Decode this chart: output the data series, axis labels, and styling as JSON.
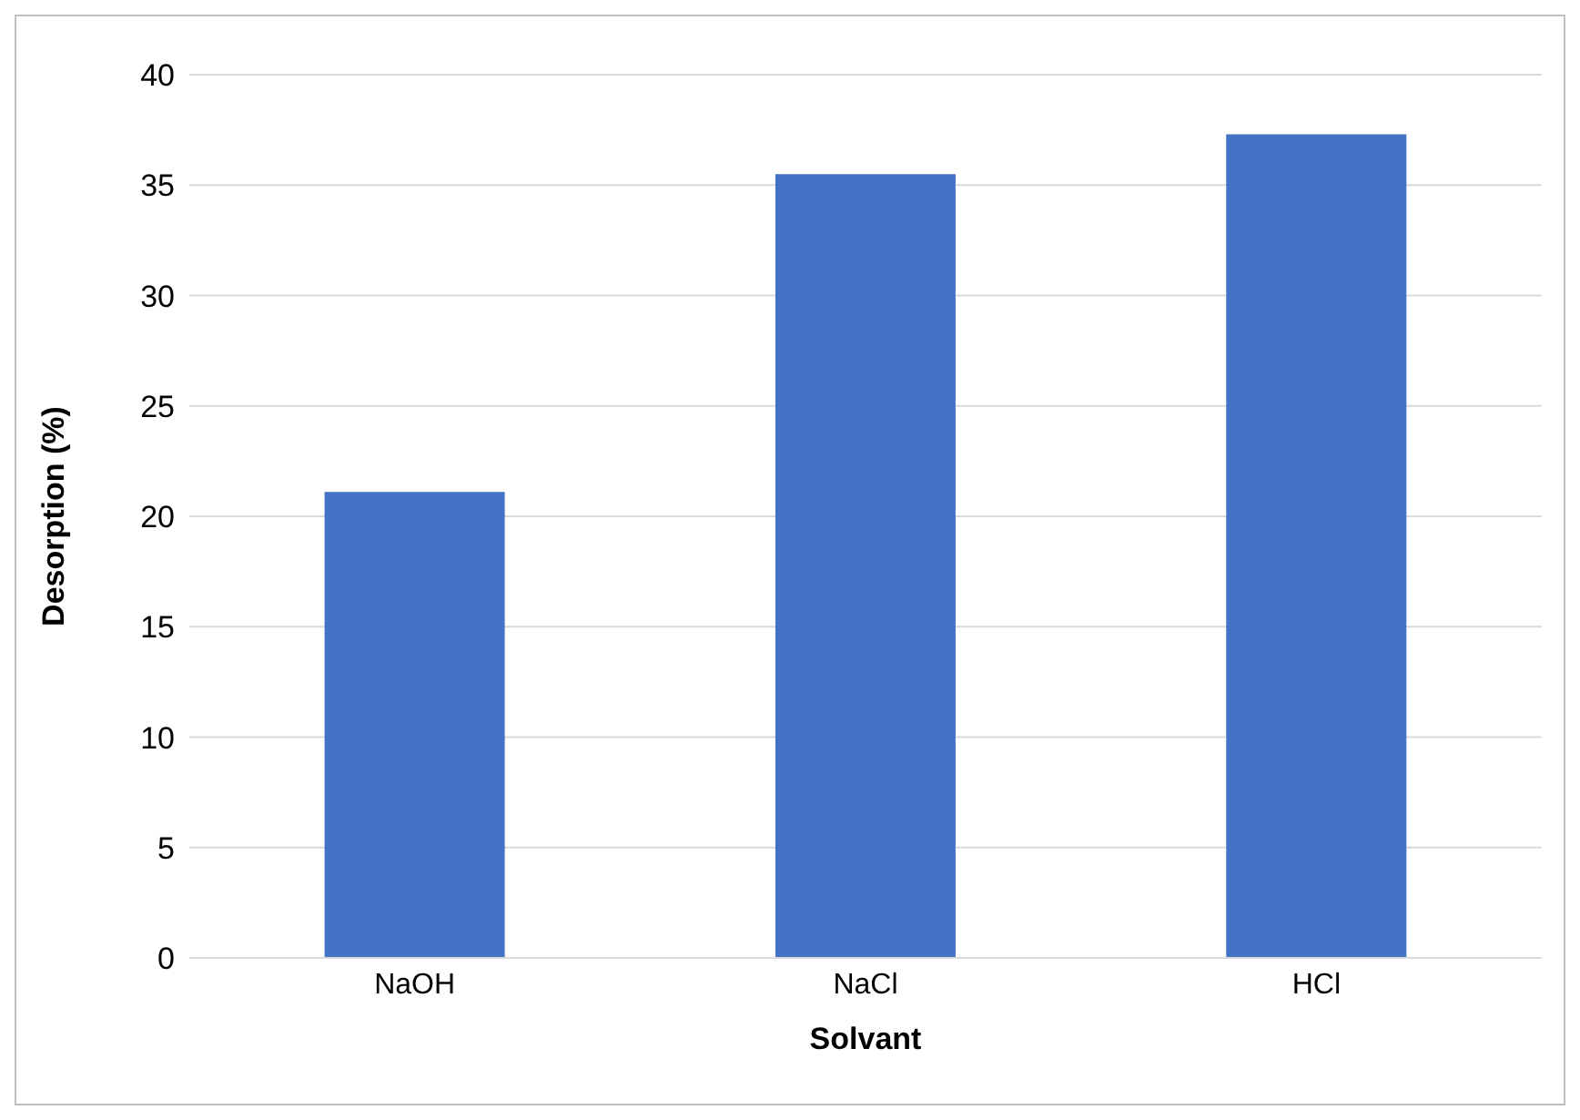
{
  "chart_data": {
    "type": "bar",
    "xlabel": "Solvant",
    "ylabel": "Desorption (%)",
    "categories": [
      "NaOH",
      "NaCl",
      "HCl"
    ],
    "values": [
      21.1,
      35.5,
      37.3
    ],
    "color": "#4472c4",
    "ylim": [
      0,
      40
    ],
    "yticks": [
      0,
      5,
      10,
      15,
      20,
      25,
      30,
      35,
      40
    ],
    "grid": "y"
  }
}
